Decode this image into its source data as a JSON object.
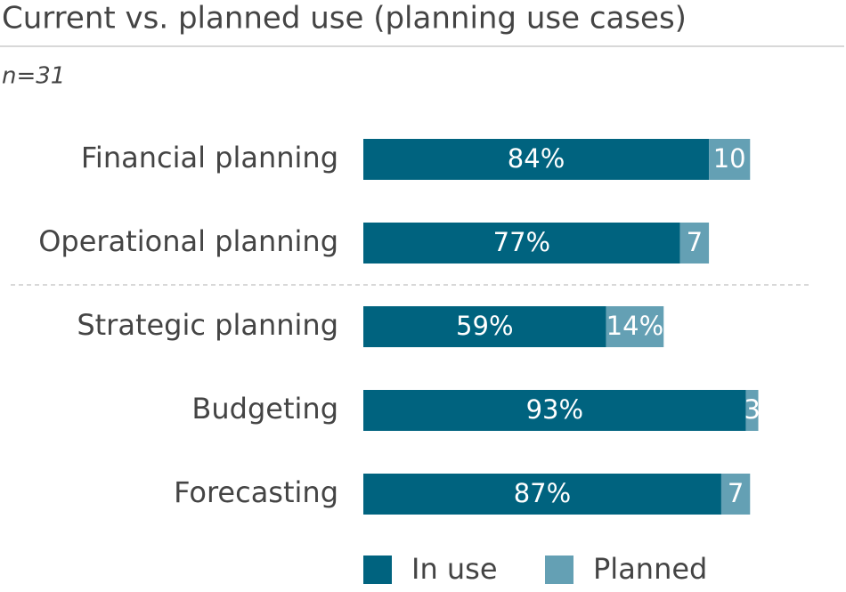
{
  "chart_data": {
    "type": "stacked-bar-horizontal",
    "title": "Current vs. planned use (planning use cases)",
    "subtitle": "n=31",
    "categories": [
      "Financial planning",
      "Operational planning",
      "Strategic planning",
      "Budgeting",
      "Forecasting"
    ],
    "series": [
      {
        "name": "In use",
        "color": "#00637f",
        "values": [
          84,
          77,
          59,
          93,
          87
        ],
        "value_labels": [
          "84%",
          "77%",
          "59%",
          "93%",
          "87%"
        ]
      },
      {
        "name": "Planned",
        "color": "#64a0b4",
        "values": [
          10,
          7,
          14,
          3,
          7
        ],
        "value_labels": [
          "10",
          "7",
          "14%",
          "3",
          "7"
        ]
      }
    ],
    "xlim": [
      0,
      100
    ]
  }
}
